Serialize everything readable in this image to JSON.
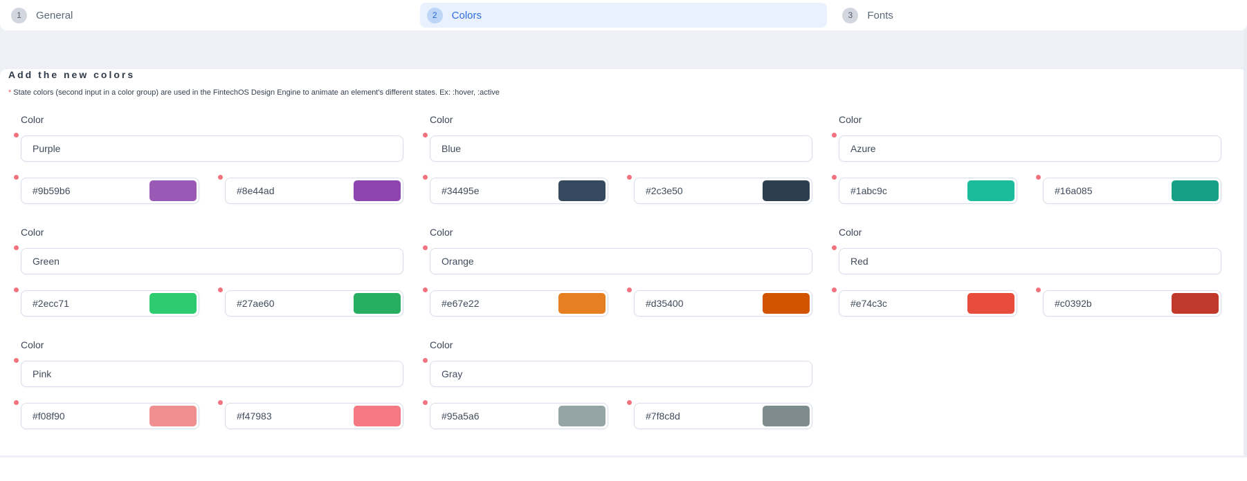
{
  "steps": [
    {
      "number": "1",
      "label": "General",
      "active": false
    },
    {
      "number": "2",
      "label": "Colors",
      "active": true
    },
    {
      "number": "3",
      "label": "Fonts",
      "active": false
    }
  ],
  "content": {
    "heading": "Add the new colors",
    "note_asterisk": "*",
    "note": "State colors (second input in a color group) are used in the FintechOS Design Engine to animate an element's different states. Ex: :hover, :active",
    "group_label": "Color",
    "groups": [
      {
        "name": "Purple",
        "colors": [
          "#9b59b6",
          "#8e44ad"
        ]
      },
      {
        "name": "Blue",
        "colors": [
          "#34495e",
          "#2c3e50"
        ]
      },
      {
        "name": "Azure",
        "colors": [
          "#1abc9c",
          "#16a085"
        ]
      },
      {
        "name": "Green",
        "colors": [
          "#2ecc71",
          "#27ae60"
        ]
      },
      {
        "name": "Orange",
        "colors": [
          "#e67e22",
          "#d35400"
        ]
      },
      {
        "name": "Red",
        "colors": [
          "#e74c3c",
          "#c0392b"
        ]
      },
      {
        "name": "Pink",
        "colors": [
          "#f08f90",
          "#f47983"
        ]
      },
      {
        "name": "Gray",
        "colors": [
          "#95a5a6",
          "#7f8c8d"
        ]
      }
    ]
  },
  "theme": {
    "active_tab_bg": "#e8f1fd",
    "active_tab_text": "#2e6de0",
    "active_badge_bg": "#bdd6f7",
    "inactive_badge_bg": "#d2d6de",
    "inactive_tab_text": "#5d6877",
    "required_dot": "#f2727d",
    "required_asterisk": "#e8596a",
    "input_border": "#d8dee9",
    "page_background": "#eef0f5"
  }
}
